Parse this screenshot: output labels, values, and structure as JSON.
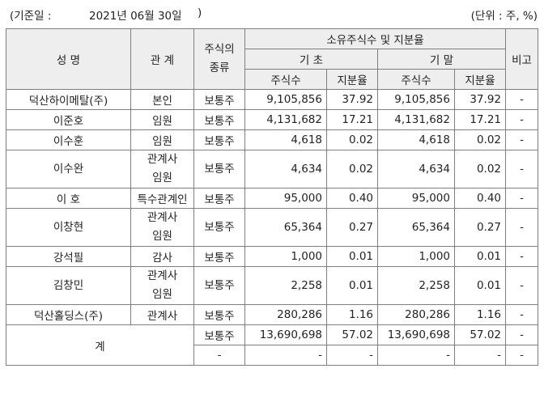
{
  "header": {
    "date_label": "(기준일 :",
    "date_value": "2021년 06월 30일",
    "date_close": ")",
    "unit": "(단위 : 주, %)"
  },
  "table": {
    "headers": {
      "name": "성 명",
      "relation": "관 계",
      "stock_type": "주식의\n종류",
      "holdings_group": "소유주식수 및 지분율",
      "period_start": "기 초",
      "period_end": "기 말",
      "shares": "주식수",
      "ratio": "지분율",
      "note": "비고"
    },
    "rows": [
      {
        "name": "덕산하이메탈(주)",
        "relation": "본인",
        "type": "보통주",
        "start_shares": "9,105,856",
        "start_ratio": "37.92",
        "end_shares": "9,105,856",
        "end_ratio": "37.92",
        "note": "-"
      },
      {
        "name": "이준호",
        "relation": "임원",
        "type": "보통주",
        "start_shares": "4,131,682",
        "start_ratio": "17.21",
        "end_shares": "4,131,682",
        "end_ratio": "17.21",
        "note": "-"
      },
      {
        "name": "이수훈",
        "relation": "임원",
        "type": "보통주",
        "start_shares": "4,618",
        "start_ratio": "0.02",
        "end_shares": "4,618",
        "end_ratio": "0.02",
        "note": "-"
      },
      {
        "name": "이수완",
        "relation": "관계사\n임원",
        "type": "보통주",
        "start_shares": "4,634",
        "start_ratio": "0.02",
        "end_shares": "4,634",
        "end_ratio": "0.02",
        "note": "-"
      },
      {
        "name": "이 호",
        "relation": "특수관계인",
        "type": "보통주",
        "start_shares": "95,000",
        "start_ratio": "0.40",
        "end_shares": "95,000",
        "end_ratio": "0.40",
        "note": "-"
      },
      {
        "name": "이창현",
        "relation": "관계사\n임원",
        "type": "보통주",
        "start_shares": "65,364",
        "start_ratio": "0.27",
        "end_shares": "65,364",
        "end_ratio": "0.27",
        "note": "-"
      },
      {
        "name": "강석필",
        "relation": "감사",
        "type": "보통주",
        "start_shares": "1,000",
        "start_ratio": "0.01",
        "end_shares": "1,000",
        "end_ratio": "0.01",
        "note": "-"
      },
      {
        "name": "김창민",
        "relation": "관계사\n임원",
        "type": "보통주",
        "start_shares": "2,258",
        "start_ratio": "0.01",
        "end_shares": "2,258",
        "end_ratio": "0.01",
        "note": "-"
      },
      {
        "name": "덕산홀딩스(주)",
        "relation": "관계사",
        "type": "보통주",
        "start_shares": "280,286",
        "start_ratio": "1.16",
        "end_shares": "280,286",
        "end_ratio": "1.16",
        "note": "-"
      }
    ],
    "total": {
      "label": "계",
      "rows": [
        {
          "type": "보통주",
          "start_shares": "13,690,698",
          "start_ratio": "57.02",
          "end_shares": "13,690,698",
          "end_ratio": "57.02",
          "note": "-"
        },
        {
          "type": "-",
          "start_shares": "-",
          "start_ratio": "-",
          "end_shares": "-",
          "end_ratio": "-",
          "note": "-"
        }
      ]
    }
  }
}
